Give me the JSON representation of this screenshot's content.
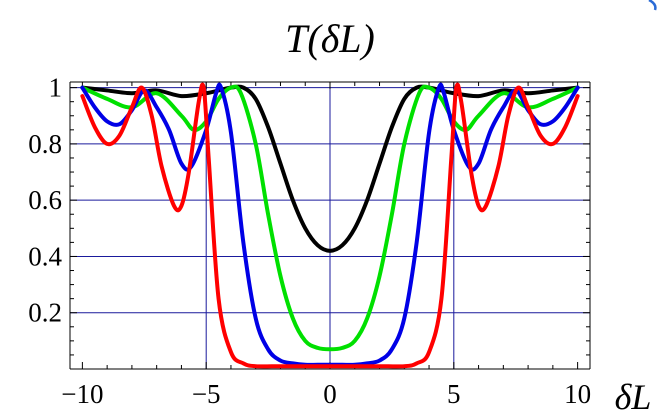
{
  "chart_data": {
    "type": "line",
    "title": "T(δL)",
    "xlabel": "δL",
    "ylabel": "",
    "xlim": [
      -10.5,
      10.5
    ],
    "ylim": [
      0,
      1.02
    ],
    "x_ticks": [
      -10,
      -5,
      0,
      5,
      10
    ],
    "x_tick_labels": [
      "−10",
      "−5",
      "0",
      "5",
      "10"
    ],
    "y_ticks": [
      0.2,
      0.4,
      0.6,
      0.8,
      1
    ],
    "y_tick_labels": [
      "0.2",
      "0.4",
      "0.6",
      "0.8",
      "1"
    ],
    "grid": {
      "horizontal": [
        0.2,
        0.4,
        0.6,
        0.8,
        1.0
      ],
      "vertical": [
        -5,
        0,
        5
      ]
    },
    "series": [
      {
        "color": "#000000",
        "x": [
          -10,
          -9,
          -8,
          -7,
          -6,
          -5,
          -4.5,
          -4,
          -3.5,
          -3,
          -2.5,
          -2,
          -1.5,
          -1,
          -0.5,
          0,
          0.5,
          1,
          1.5,
          2,
          2.5,
          3,
          3.5,
          4,
          4.5,
          5,
          6,
          7,
          8,
          9,
          10
        ],
        "values": [
          1.0,
          0.99,
          0.98,
          0.99,
          0.97,
          0.98,
          0.99,
          1.0,
          1.0,
          0.96,
          0.86,
          0.73,
          0.6,
          0.5,
          0.44,
          0.42,
          0.44,
          0.5,
          0.6,
          0.73,
          0.86,
          0.96,
          1.0,
          1.0,
          0.99,
          0.98,
          0.97,
          0.99,
          0.98,
          0.99,
          1.0
        ]
      },
      {
        "color": "#00e000",
        "x": [
          -10,
          -9,
          -8,
          -7,
          -6,
          -5.5,
          -5,
          -4.5,
          -4,
          -3.6,
          -3,
          -2.5,
          -2,
          -1.5,
          -1,
          -0.5,
          0,
          0.5,
          1,
          1.5,
          2,
          2.5,
          3,
          3.6,
          4,
          4.5,
          5,
          5.5,
          6,
          7,
          8,
          9,
          10
        ],
        "values": [
          1.0,
          0.96,
          0.93,
          0.98,
          0.9,
          0.85,
          0.88,
          0.96,
          1.0,
          0.98,
          0.8,
          0.55,
          0.33,
          0.18,
          0.1,
          0.075,
          0.07,
          0.075,
          0.1,
          0.18,
          0.33,
          0.55,
          0.8,
          0.98,
          1.0,
          0.96,
          0.88,
          0.85,
          0.9,
          0.98,
          0.93,
          0.96,
          1.0
        ]
      },
      {
        "color": "#0000e6",
        "x": [
          -10,
          -9.5,
          -9,
          -8.5,
          -8,
          -7.5,
          -7,
          -6.5,
          -6,
          -5.6,
          -5,
          -4.6,
          -4.4,
          -4,
          -3.5,
          -3,
          -2.5,
          -2,
          -1.5,
          -1,
          -0.5,
          0,
          0.5,
          1,
          1.5,
          2,
          2.5,
          3,
          3.5,
          4,
          4.4,
          4.6,
          5,
          5.6,
          6,
          6.5,
          7,
          7.5,
          8,
          8.5,
          9,
          9.5,
          10
        ],
        "values": [
          1.0,
          0.93,
          0.88,
          0.87,
          0.92,
          0.99,
          0.93,
          0.85,
          0.73,
          0.72,
          0.85,
          0.98,
          1.0,
          0.84,
          0.45,
          0.18,
          0.07,
          0.03,
          0.02,
          0.015,
          0.015,
          0.015,
          0.015,
          0.015,
          0.02,
          0.03,
          0.07,
          0.18,
          0.45,
          0.84,
          1.0,
          0.98,
          0.85,
          0.72,
          0.73,
          0.85,
          0.93,
          0.99,
          0.92,
          0.87,
          0.88,
          0.93,
          1.0
        ]
      },
      {
        "color": "#ff0000",
        "x": [
          -10,
          -9.5,
          -9,
          -8.5,
          -8,
          -7.6,
          -7.2,
          -6.8,
          -6.3,
          -6,
          -5.7,
          -5.3,
          -5.1,
          -4.9,
          -4.5,
          -4,
          -3.5,
          -3,
          -2,
          -1,
          0,
          1,
          2,
          3,
          3.5,
          4,
          4.5,
          4.9,
          5.1,
          5.3,
          5.7,
          6,
          6.3,
          6.8,
          7.2,
          7.6,
          8,
          8.5,
          9,
          9.5,
          10
        ],
        "values": [
          0.97,
          0.86,
          0.8,
          0.83,
          0.93,
          1.0,
          0.9,
          0.72,
          0.58,
          0.58,
          0.7,
          0.95,
          1.0,
          0.75,
          0.25,
          0.06,
          0.02,
          0.01,
          0.01,
          0.01,
          0.01,
          0.01,
          0.01,
          0.01,
          0.02,
          0.06,
          0.25,
          0.75,
          1.0,
          0.95,
          0.7,
          0.58,
          0.58,
          0.72,
          0.9,
          1.0,
          0.93,
          0.83,
          0.8,
          0.86,
          0.97
        ]
      }
    ]
  }
}
